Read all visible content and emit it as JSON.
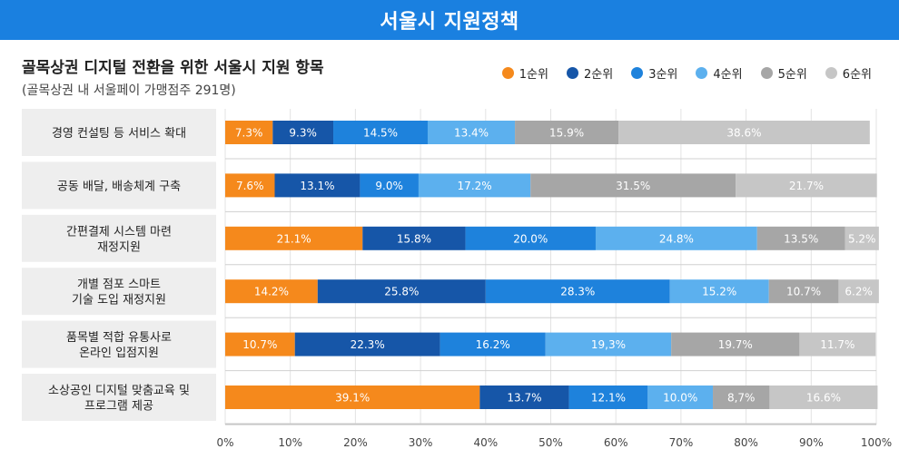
{
  "header": {
    "title": "서울시 지원정책"
  },
  "chart_data": {
    "type": "bar",
    "orientation": "horizontal",
    "stacked": true,
    "title": "골목상권 디지털 전환을 위한 서울시 지원 항목",
    "subtitle": "(골목상권 내 서울페이 가맹점주 291명)",
    "categories": [
      [
        "경영 컨설팅 등 서비스 확대"
      ],
      [
        "공동 배달, 배송체계 구축"
      ],
      [
        "간편결제 시스템 마련",
        "재정지원"
      ],
      [
        "개별 점포 스마트",
        "기술 도입 재정지원"
      ],
      [
        "품목별 적합 유통사로",
        "온라인 입점지원"
      ],
      [
        "소상공인 디지털 맞춤교육 및",
        "프로그램 제공"
      ]
    ],
    "series": [
      {
        "name": "1순위",
        "color": "#f5891c",
        "values": [
          7.3,
          7.6,
          21.1,
          14.2,
          10.7,
          39.1
        ],
        "labels": [
          "7.3%",
          "7.6%",
          "21.1%",
          "14.2%",
          "10.7%",
          "39.1%"
        ]
      },
      {
        "name": "2순위",
        "color": "#1656a8",
        "values": [
          9.3,
          13.1,
          15.8,
          25.8,
          22.3,
          13.7
        ],
        "labels": [
          "9.3%",
          "13.1%",
          "15.8%",
          "25.8%",
          "22.3%",
          "13.7%"
        ]
      },
      {
        "name": "3순위",
        "color": "#1e82dc",
        "values": [
          14.5,
          9.0,
          20.0,
          28.3,
          16.2,
          12.1
        ],
        "labels": [
          "14.5%",
          "9.0%",
          "20.0%",
          "28.3%",
          "16.2%",
          "12.1%"
        ]
      },
      {
        "name": "4순위",
        "color": "#5cb0ee",
        "values": [
          13.4,
          17.2,
          24.8,
          15.2,
          19.3,
          10.0
        ],
        "labels": [
          "13.4%",
          "17.2%",
          "24.8%",
          "15.2%",
          "19,3%",
          "10.0%"
        ]
      },
      {
        "name": "5순위",
        "color": "#a6a6a6",
        "values": [
          15.9,
          31.5,
          13.5,
          10.7,
          19.7,
          8.7
        ],
        "labels": [
          "15.9%",
          "31.5%",
          "13.5%",
          "10.7%",
          "19.7%",
          "8,7%"
        ]
      },
      {
        "name": "6순위",
        "color": "#c6c6c6",
        "values": [
          38.6,
          21.7,
          5.2,
          6.2,
          11.7,
          16.6
        ],
        "labels": [
          "38.6%",
          "21.7%",
          "5.2%",
          "6.2%",
          "11.7%",
          "16.6%"
        ]
      }
    ],
    "x_ticks": [
      "0%",
      "10%",
      "20%",
      "30%",
      "40%",
      "50%",
      "60%",
      "70%",
      "80%",
      "90%",
      "100%"
    ],
    "xlim": [
      0,
      100
    ],
    "grid": true,
    "legend_position": "top-right"
  }
}
